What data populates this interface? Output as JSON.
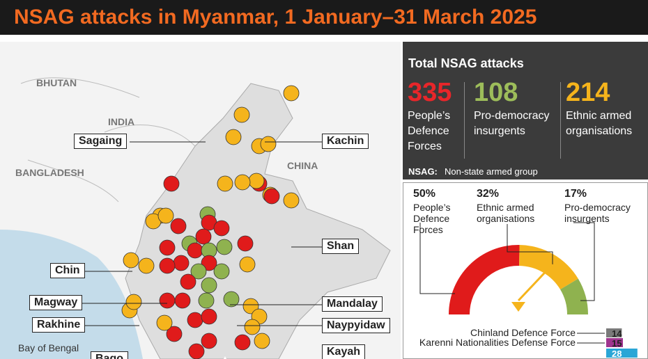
{
  "title": "NSAG attacks in Myanmar, 1 January–31 March 2025",
  "map": {
    "countries": [
      "BHUTAN",
      "INDIA",
      "BANGLADESH",
      "CHINA"
    ],
    "water": [
      "Bay of Bengal"
    ],
    "regions": [
      "Sagaing",
      "Kachin",
      "Shan",
      "Chin",
      "Magway",
      "Mandalay",
      "Rakhine",
      "Naypyidaw",
      "Kayah",
      "Bago"
    ]
  },
  "totals": {
    "title": "Total NSAG attacks",
    "items": [
      {
        "value": 335,
        "label": "People’s Defence Forces",
        "color": "#e8262a"
      },
      {
        "value": 108,
        "label": "Pro-democracy insurgents",
        "color": "#9dbd5a"
      },
      {
        "value": 214,
        "label": "Ethnic armed organisations",
        "color": "#f5b41c"
      }
    ]
  },
  "note": {
    "term": "NSAG:",
    "text": "Non-state armed group"
  },
  "share": {
    "type": "gauge",
    "items": [
      {
        "value": 50,
        "value_label": "50%",
        "label": "People’s Defence Forces",
        "color": "#e01b1b"
      },
      {
        "value": 32,
        "value_label": "32%",
        "label": "Ethnic armed organisations",
        "color": "#f5b41c"
      },
      {
        "value": 17,
        "value_label": "17%",
        "label": "Pro-democracy insurgents",
        "color": "#8fb24f"
      }
    ]
  },
  "groups": {
    "type": "bar",
    "items": [
      {
        "name": "Chinland Defence Force",
        "value": 14,
        "color": "#7a7a7a"
      },
      {
        "name": "Karenni Nationalities Defense Force",
        "value": 15,
        "color": "#a0358f"
      },
      {
        "value": 28,
        "color": "#2aa6d6"
      }
    ]
  }
}
